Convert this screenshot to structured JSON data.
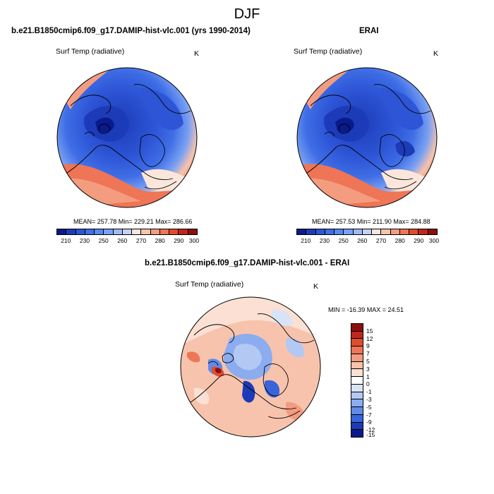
{
  "figure": {
    "title": "DJF"
  },
  "panels": [
    {
      "title": "b.e21.B1850cmip6.f09_g17.DAMIP-hist-vlc.001 (yrs 1990-2014)",
      "variable": "Surf Temp (radiative)",
      "units": "K",
      "stats": "MEAN= 257.78  Min= 229.21  Max= 286.66",
      "colorbar_ticks": [
        "210",
        "230",
        "250",
        "260",
        "270",
        "280",
        "290",
        "300"
      ]
    },
    {
      "title": "ERAI",
      "variable": "Surf Temp (radiative)",
      "units": "K",
      "stats": "MEAN= 257.53  Min= 211.90  Max= 284.88",
      "colorbar_ticks": [
        "210",
        "230",
        "250",
        "260",
        "270",
        "280",
        "290",
        "300"
      ]
    },
    {
      "title": "b.e21.B1850cmip6.f09_g17.DAMIP-hist-vlc.001 - ERAI",
      "variable": "Surf Temp (radiative)",
      "units": "K",
      "stats": "MIN = -16.39  MAX =  24.51",
      "colorbar_ticks": [
        "15",
        "12",
        "9",
        "7",
        "5",
        "3",
        "1",
        "0",
        "-1",
        "-3",
        "-5",
        "-7",
        "-9",
        "-12",
        "-15"
      ]
    }
  ],
  "colors": {
    "abs_scale": [
      "#0a1a8c",
      "#1c3bb8",
      "#2d55d6",
      "#3f6ee6",
      "#5a88ef",
      "#7aa1f2",
      "#9fbbf4",
      "#c3d3f5",
      "#fbe6dc",
      "#f7c3ad",
      "#f39c80",
      "#ee7556",
      "#df4d2d",
      "#c0271a",
      "#8c0f0e"
    ],
    "diff_scale": [
      "#8c0f0e",
      "#c0271a",
      "#df4d2d",
      "#ee7556",
      "#f39c80",
      "#f7c3ad",
      "#fbe0d3",
      "#ffffff",
      "#d8e4f6",
      "#b3c9f3",
      "#8bacef",
      "#5f8be8",
      "#3865dc",
      "#1c3bb8",
      "#0a1a8c"
    ]
  }
}
